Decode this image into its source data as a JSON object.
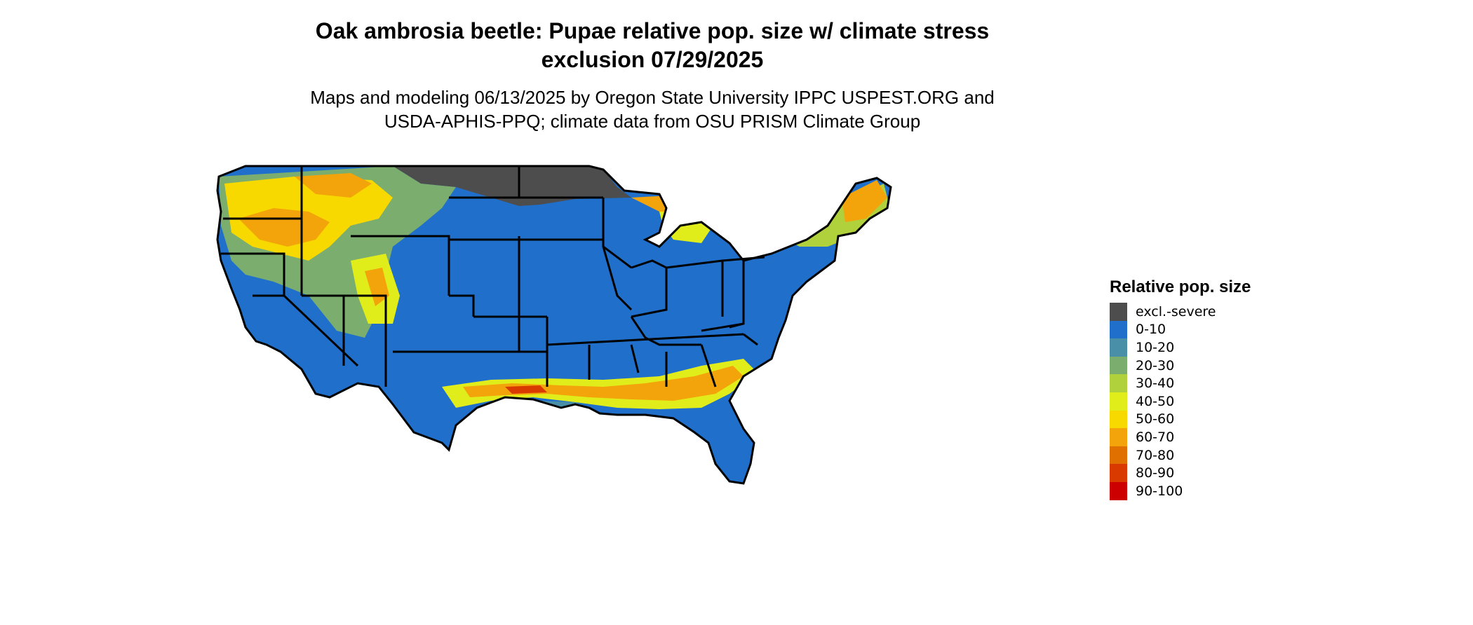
{
  "title_line1": "Oak ambrosia beetle: Pupae relative pop. size w/ climate stress",
  "title_line2": "exclusion 07/29/2025",
  "subtitle_line1": "Maps and modeling 06/13/2025 by Oregon State University IPPC USPEST.ORG and",
  "subtitle_line2": "USDA-APHIS-PPQ; climate data from OSU PRISM Climate Group",
  "legend": {
    "title": "Relative pop. size",
    "items": [
      {
        "label": "excl.-severe",
        "color": "#4d4d4d"
      },
      {
        "label": "0-10",
        "color": "#1f6fcb"
      },
      {
        "label": "10-20",
        "color": "#4a8fa8"
      },
      {
        "label": "20-30",
        "color": "#7aad6e"
      },
      {
        "label": "30-40",
        "color": "#b0d13c"
      },
      {
        "label": "40-50",
        "color": "#e1ed1b"
      },
      {
        "label": "50-60",
        "color": "#f7d900"
      },
      {
        "label": "60-70",
        "color": "#f2a40a"
      },
      {
        "label": "70-80",
        "color": "#e07000"
      },
      {
        "label": "80-90",
        "color": "#d93a00"
      },
      {
        "label": "90-100",
        "color": "#cc0000"
      }
    ]
  }
}
